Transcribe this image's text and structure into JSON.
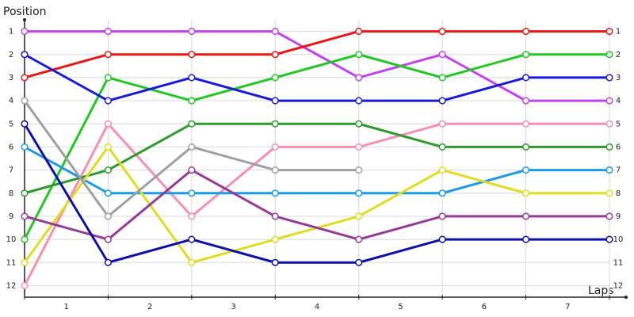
{
  "chart_data": {
    "type": "line",
    "title": "Position",
    "x_label": "Laps",
    "x": [
      0,
      1,
      2,
      3,
      4,
      5,
      6,
      7
    ],
    "xlim": [
      0,
      7
    ],
    "xticks": [
      {
        "value": 0.5,
        "label": "1"
      },
      {
        "value": 1.5,
        "label": "2"
      },
      {
        "value": 2.5,
        "label": "3"
      },
      {
        "value": 3.5,
        "label": "4"
      },
      {
        "value": 4.5,
        "label": "5"
      },
      {
        "value": 5.5,
        "label": "6"
      },
      {
        "value": 6.5,
        "label": "7"
      }
    ],
    "ylim": [
      12.5,
      0.5
    ],
    "yticks": [
      1,
      2,
      3,
      4,
      5,
      6,
      7,
      8,
      9,
      10,
      11,
      12
    ],
    "grid": true,
    "series": [
      {
        "color": "#c043f0",
        "values": [
          1,
          1,
          1,
          1,
          3,
          2,
          4,
          4
        ]
      },
      {
        "color": "#e81818",
        "values": [
          3,
          2,
          2,
          2,
          1,
          1,
          1,
          1
        ]
      },
      {
        "color": "#22c822",
        "values": [
          10,
          3,
          4,
          3,
          2,
          3,
          2,
          2
        ]
      },
      {
        "color": "#1a1ad8",
        "values": [
          2,
          4,
          3,
          4,
          4,
          4,
          3,
          3
        ]
      },
      {
        "color": "#f88fb0",
        "values": [
          12,
          5,
          9,
          6,
          6,
          5,
          5,
          5
        ]
      },
      {
        "color": "#2e9a2e",
        "values": [
          8,
          7,
          5,
          5,
          5,
          6,
          6,
          6
        ]
      },
      {
        "color": "#1a9ae8",
        "values": [
          6,
          8,
          8,
          8,
          8,
          8,
          7,
          7
        ]
      },
      {
        "color": "#e0dc20",
        "values": [
          11,
          6,
          11,
          10,
          9,
          7,
          8,
          8
        ]
      },
      {
        "color": "#963a96",
        "values": [
          9,
          10,
          7,
          9,
          10,
          9,
          9,
          9
        ]
      },
      {
        "color": "#1010a8",
        "values": [
          5,
          11,
          10,
          11,
          11,
          10,
          10,
          10
        ]
      },
      {
        "color": "#a0a0a0",
        "values": [
          4,
          9,
          6,
          7,
          7,
          null,
          null,
          null
        ]
      }
    ]
  }
}
